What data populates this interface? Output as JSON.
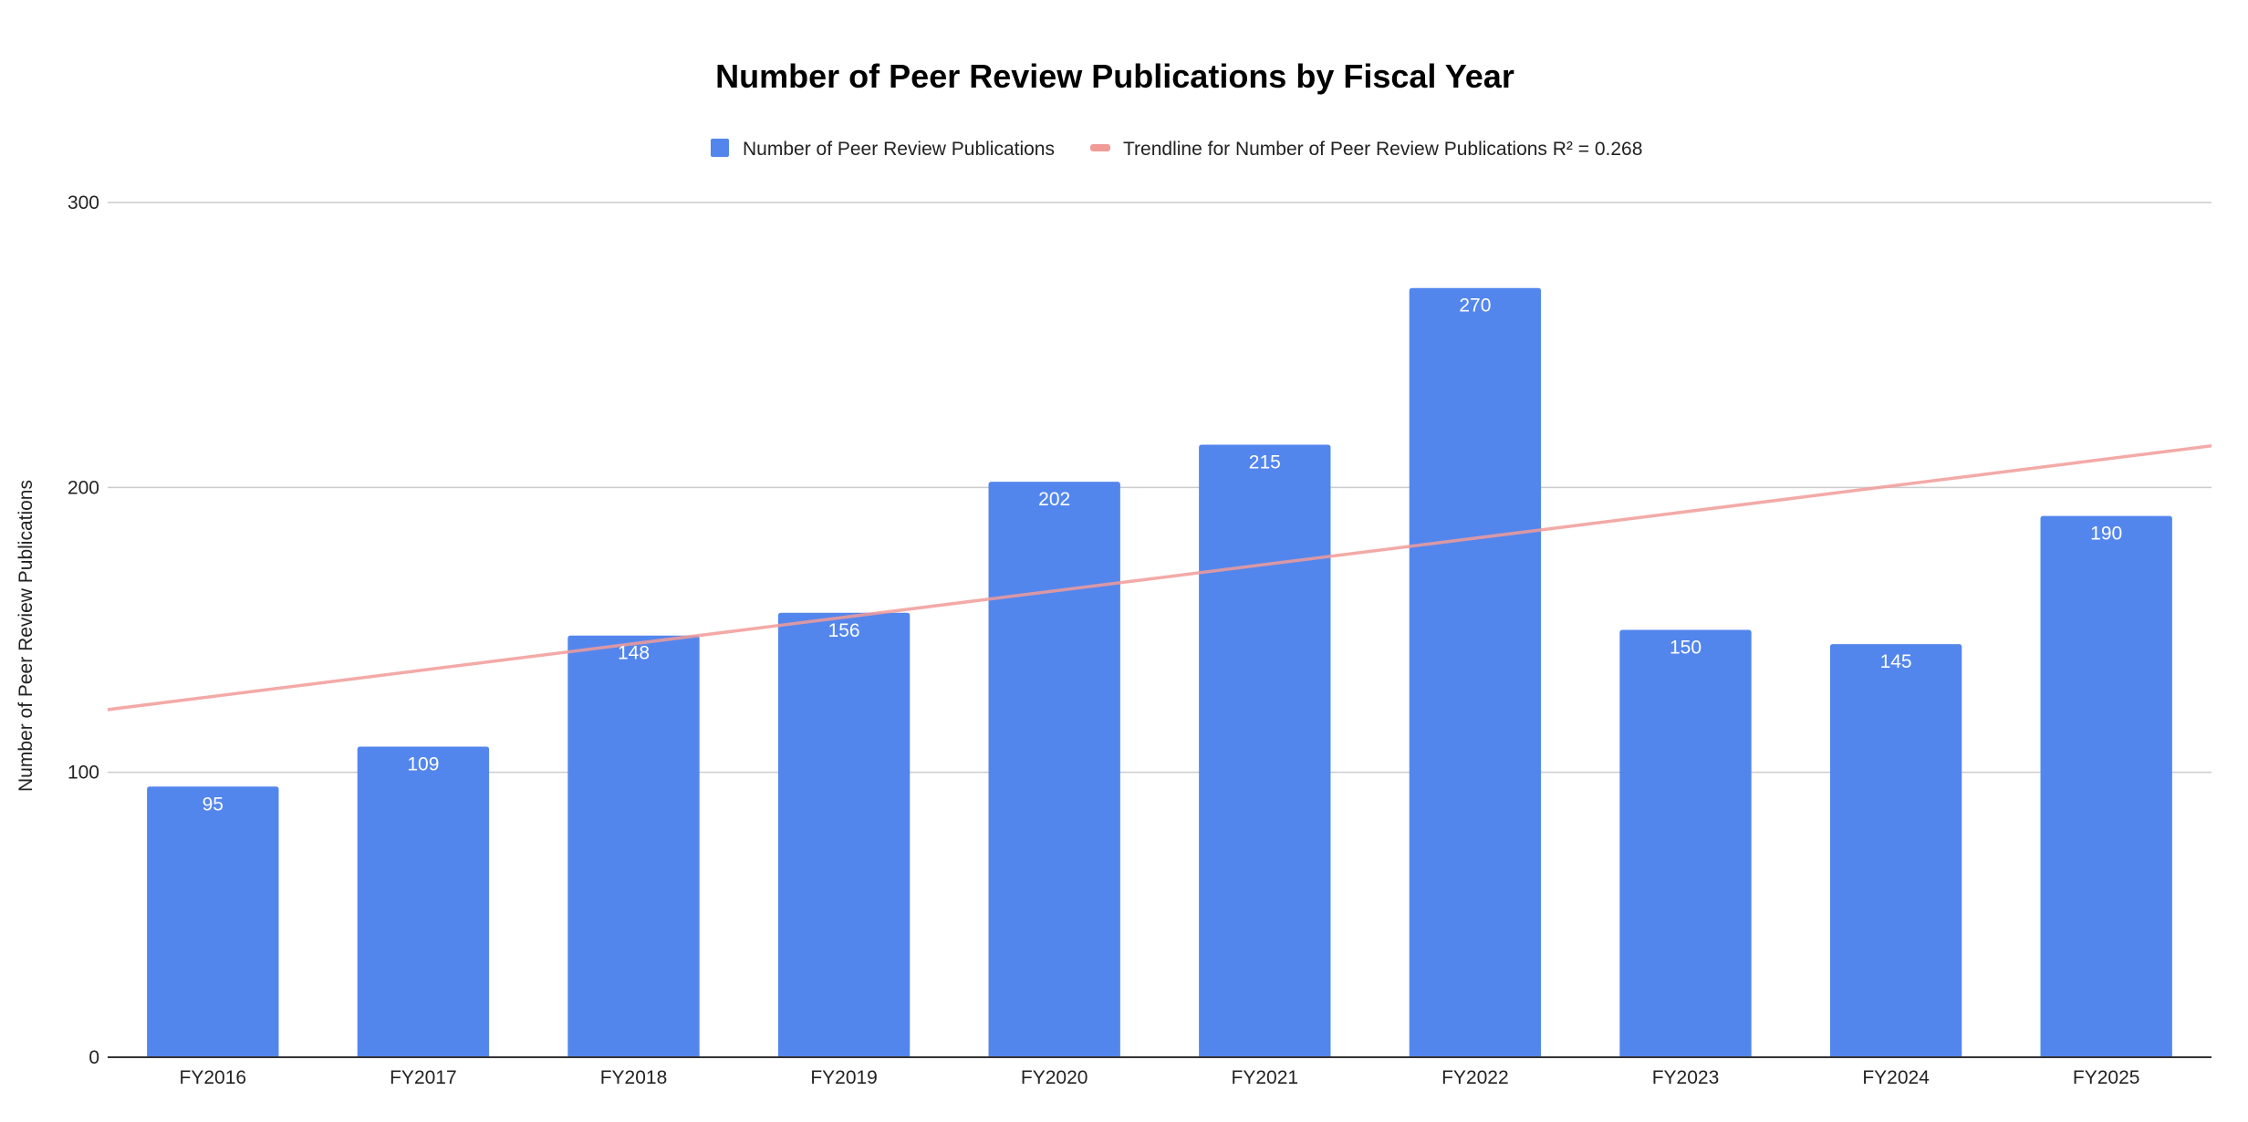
{
  "chart_data": {
    "type": "bar",
    "title": "Number of Peer Review Publications by Fiscal Year",
    "xlabel": "",
    "ylabel": "Number of Peer Review Publications",
    "categories": [
      "FY2016",
      "FY2017",
      "FY2018",
      "FY2019",
      "FY2020",
      "FY2021",
      "FY2022",
      "FY2023",
      "FY2024",
      "FY2025"
    ],
    "series": [
      {
        "name": "Number of Peer Review Publications",
        "values": [
          95,
          109,
          148,
          156,
          202,
          215,
          270,
          150,
          145,
          190
        ],
        "color": "#5386ed"
      }
    ],
    "trendline": {
      "legend_label": "Trendline for Number of Peer Review Publications R² = 0.268",
      "start_value": 122,
      "end_value": 214.6,
      "color": "#f19b98"
    },
    "ylim": [
      0,
      300
    ],
    "yticks": [
      0,
      100,
      200,
      300
    ],
    "grid": true,
    "legend_position": "top-center",
    "data_labels": true,
    "colors": {
      "axis": "#333333",
      "grid": "#cccccc"
    }
  }
}
